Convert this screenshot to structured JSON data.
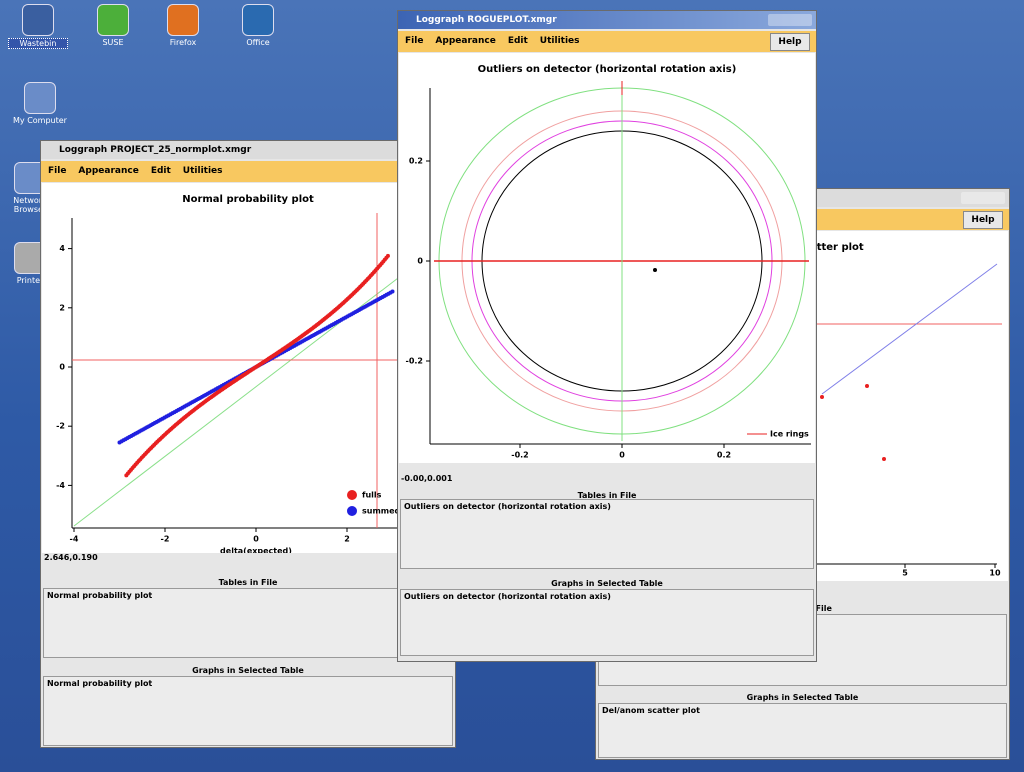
{
  "desktop": {
    "icons": [
      "Wastebin",
      "SUSE",
      "Firefox",
      "Office",
      "My Computer",
      "Network Browser",
      "Printer"
    ]
  },
  "windows": [
    {
      "title": "Loggraph PROJECT_25_normplot.xmgr",
      "menu": [
        "File",
        "Appearance",
        "Edit",
        "Utilities"
      ],
      "plot": {
        "title": "Normal probability plot",
        "xlabel": "delta(expected)",
        "xticks": [
          -4,
          -2,
          0,
          2
        ],
        "yticks": [
          4,
          2,
          0,
          -2,
          -4
        ],
        "legend": [
          "fulls",
          "summed"
        ]
      },
      "status": "2.646,0.190",
      "tables_header": "Tables in File",
      "tables": [
        "Normal probability plot"
      ],
      "graphs_header": "Graphs in Selected Table",
      "graphs": [
        "Normal probability plot"
      ]
    },
    {
      "help": "Help",
      "plot": {
        "title": "Del/anom scatter plot",
        "xticks": [
          5,
          10
        ]
      },
      "tables_header": "Tables in File",
      "graphs_header": "Graphs in Selected Table",
      "graphs": [
        "Del/anom scatter plot"
      ]
    },
    {
      "title": "Loggraph ROGUEPLOT.xmgr",
      "menu": [
        "File",
        "Appearance",
        "Edit",
        "Utilities"
      ],
      "help": "Help",
      "plot": {
        "title": "Outliers on detector (horizontal rotation axis)",
        "xticks": [
          -0.2,
          0,
          0.2
        ],
        "yticks": [
          0.2,
          0,
          -0.2
        ],
        "legend": [
          "Ice rings"
        ]
      },
      "status": "-0.00,0.001",
      "tables_header": "Tables in File",
      "tables": [
        "Outliers on detector (horizontal rotation axis)"
      ],
      "graphs_header": "Graphs in Selected Table",
      "graphs": [
        "Outliers on detector (horizontal rotation axis)"
      ]
    }
  ]
}
